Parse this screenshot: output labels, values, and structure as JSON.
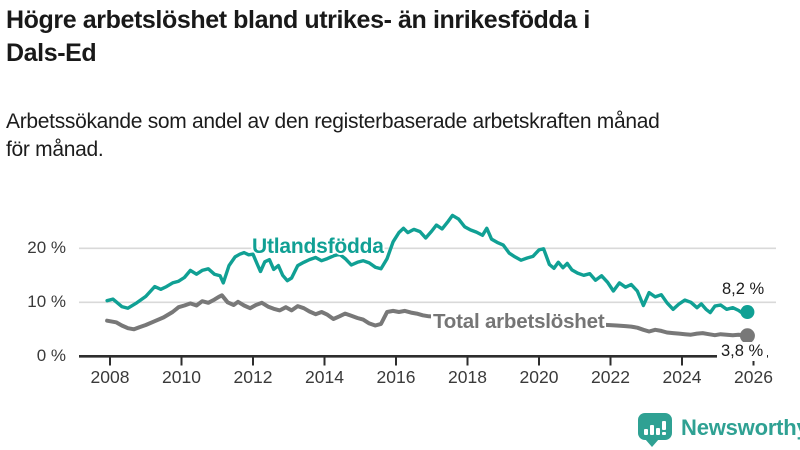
{
  "header": {
    "title": "Högre arbetslöshet bland utrikes- än inrikesfödda i\nDals-Ed",
    "subtitle": "Arbetssökande som andel av den registerbaserade arbetskraften månad\nför månad."
  },
  "footer": {
    "brand": "Newsworthy",
    "brand_color": "#2FA193",
    "logo_icon": "bar-chart-speech-bubble-icon"
  },
  "chart_data": {
    "type": "line",
    "title": "Högre arbetslöshet bland utrikes- än inrikesfödda i Dals-Ed",
    "subtitle": "Arbetssökande som andel av den registerbaserade arbetskraften månad för månad.",
    "unit": "%",
    "grid": "horizontal",
    "x_axis": {
      "ticks": [
        2008,
        2010,
        2012,
        2014,
        2016,
        2018,
        2020,
        2022,
        2024,
        2026
      ],
      "range": [
        2007.3,
        2026.4
      ]
    },
    "y_axis": {
      "ticks": [
        {
          "value": 0,
          "label": "0 %"
        },
        {
          "value": 10,
          "label": "10 %"
        },
        {
          "value": 20,
          "label": "20 %"
        }
      ],
      "range": [
        0,
        27
      ]
    },
    "series": [
      {
        "name": "Utlandsfödda",
        "color": "#10A094",
        "end_label": "8,2 %",
        "end_value": 8.2,
        "points": [
          [
            2007.92,
            10.3
          ],
          [
            2008.08,
            10.6
          ],
          [
            2008.33,
            9.2
          ],
          [
            2008.5,
            8.9
          ],
          [
            2008.75,
            9.9
          ],
          [
            2009.0,
            11.1
          ],
          [
            2009.25,
            12.9
          ],
          [
            2009.42,
            12.4
          ],
          [
            2009.58,
            12.9
          ],
          [
            2009.75,
            13.6
          ],
          [
            2009.92,
            13.9
          ],
          [
            2010.08,
            14.6
          ],
          [
            2010.25,
            15.9
          ],
          [
            2010.42,
            15.2
          ],
          [
            2010.58,
            15.9
          ],
          [
            2010.75,
            16.2
          ],
          [
            2010.92,
            15.2
          ],
          [
            2011.08,
            14.9
          ],
          [
            2011.17,
            13.6
          ],
          [
            2011.33,
            16.8
          ],
          [
            2011.5,
            18.4
          ],
          [
            2011.63,
            18.9
          ],
          [
            2011.75,
            19.2
          ],
          [
            2011.88,
            18.8
          ],
          [
            2012.0,
            18.9
          ],
          [
            2012.13,
            16.9
          ],
          [
            2012.21,
            15.7
          ],
          [
            2012.33,
            17.5
          ],
          [
            2012.46,
            17.9
          ],
          [
            2012.58,
            16.1
          ],
          [
            2012.71,
            16.8
          ],
          [
            2012.83,
            15.0
          ],
          [
            2012.96,
            14.0
          ],
          [
            2013.08,
            14.5
          ],
          [
            2013.25,
            16.8
          ],
          [
            2013.42,
            17.4
          ],
          [
            2013.58,
            17.9
          ],
          [
            2013.75,
            18.3
          ],
          [
            2013.92,
            17.7
          ],
          [
            2014.08,
            18.1
          ],
          [
            2014.25,
            18.6
          ],
          [
            2014.42,
            18.9
          ],
          [
            2014.58,
            18.1
          ],
          [
            2014.75,
            16.9
          ],
          [
            2014.92,
            17.4
          ],
          [
            2015.08,
            17.7
          ],
          [
            2015.25,
            17.3
          ],
          [
            2015.42,
            16.5
          ],
          [
            2015.58,
            16.2
          ],
          [
            2015.75,
            18.1
          ],
          [
            2015.92,
            21.2
          ],
          [
            2016.08,
            22.9
          ],
          [
            2016.21,
            23.7
          ],
          [
            2016.33,
            22.9
          ],
          [
            2016.5,
            23.5
          ],
          [
            2016.67,
            23.1
          ],
          [
            2016.83,
            21.9
          ],
          [
            2017.0,
            23.2
          ],
          [
            2017.13,
            24.3
          ],
          [
            2017.29,
            23.6
          ],
          [
            2017.46,
            25.0
          ],
          [
            2017.58,
            26.1
          ],
          [
            2017.75,
            25.4
          ],
          [
            2017.92,
            24.0
          ],
          [
            2018.08,
            23.4
          ],
          [
            2018.25,
            23.0
          ],
          [
            2018.42,
            22.4
          ],
          [
            2018.54,
            23.7
          ],
          [
            2018.67,
            21.7
          ],
          [
            2018.83,
            21.1
          ],
          [
            2019.0,
            20.6
          ],
          [
            2019.17,
            19.1
          ],
          [
            2019.33,
            18.4
          ],
          [
            2019.5,
            17.8
          ],
          [
            2019.67,
            18.2
          ],
          [
            2019.83,
            18.5
          ],
          [
            2020.0,
            19.7
          ],
          [
            2020.13,
            19.9
          ],
          [
            2020.29,
            17.0
          ],
          [
            2020.42,
            16.3
          ],
          [
            2020.54,
            17.4
          ],
          [
            2020.67,
            16.4
          ],
          [
            2020.79,
            17.2
          ],
          [
            2020.92,
            16.0
          ],
          [
            2021.08,
            15.4
          ],
          [
            2021.25,
            15.0
          ],
          [
            2021.42,
            15.3
          ],
          [
            2021.58,
            14.1
          ],
          [
            2021.75,
            14.9
          ],
          [
            2021.92,
            13.7
          ],
          [
            2022.08,
            12.1
          ],
          [
            2022.25,
            13.6
          ],
          [
            2022.42,
            12.8
          ],
          [
            2022.58,
            13.3
          ],
          [
            2022.75,
            12.1
          ],
          [
            2022.92,
            9.4
          ],
          [
            2023.08,
            11.8
          ],
          [
            2023.25,
            11.0
          ],
          [
            2023.42,
            11.4
          ],
          [
            2023.58,
            9.9
          ],
          [
            2023.75,
            8.7
          ],
          [
            2023.92,
            9.7
          ],
          [
            2024.08,
            10.4
          ],
          [
            2024.25,
            10.0
          ],
          [
            2024.42,
            9.0
          ],
          [
            2024.54,
            9.7
          ],
          [
            2024.67,
            8.7
          ],
          [
            2024.79,
            8.1
          ],
          [
            2024.92,
            9.3
          ],
          [
            2025.08,
            9.5
          ],
          [
            2025.25,
            8.7
          ],
          [
            2025.42,
            9.0
          ],
          [
            2025.58,
            8.5
          ],
          [
            2025.71,
            7.9
          ],
          [
            2025.83,
            8.2
          ]
        ]
      },
      {
        "name": "Total arbetslöshet",
        "color": "#787878",
        "end_label": "3,8 %",
        "end_value": 3.8,
        "points": [
          [
            2007.92,
            6.6
          ],
          [
            2008.17,
            6.3
          ],
          [
            2008.33,
            5.7
          ],
          [
            2008.5,
            5.2
          ],
          [
            2008.67,
            5.0
          ],
          [
            2008.83,
            5.4
          ],
          [
            2009.0,
            5.8
          ],
          [
            2009.25,
            6.5
          ],
          [
            2009.5,
            7.2
          ],
          [
            2009.75,
            8.2
          ],
          [
            2009.92,
            9.1
          ],
          [
            2010.08,
            9.4
          ],
          [
            2010.25,
            9.8
          ],
          [
            2010.42,
            9.4
          ],
          [
            2010.58,
            10.2
          ],
          [
            2010.75,
            9.9
          ],
          [
            2010.92,
            10.5
          ],
          [
            2011.04,
            11.0
          ],
          [
            2011.13,
            11.3
          ],
          [
            2011.29,
            10.0
          ],
          [
            2011.46,
            9.5
          ],
          [
            2011.58,
            10.1
          ],
          [
            2011.75,
            9.4
          ],
          [
            2011.92,
            8.9
          ],
          [
            2012.08,
            9.5
          ],
          [
            2012.25,
            9.9
          ],
          [
            2012.42,
            9.2
          ],
          [
            2012.58,
            8.8
          ],
          [
            2012.75,
            8.5
          ],
          [
            2012.92,
            9.1
          ],
          [
            2013.08,
            8.5
          ],
          [
            2013.25,
            9.3
          ],
          [
            2013.42,
            8.9
          ],
          [
            2013.58,
            8.3
          ],
          [
            2013.75,
            7.8
          ],
          [
            2013.92,
            8.2
          ],
          [
            2014.08,
            7.7
          ],
          [
            2014.25,
            6.9
          ],
          [
            2014.42,
            7.4
          ],
          [
            2014.58,
            7.9
          ],
          [
            2014.75,
            7.5
          ],
          [
            2014.92,
            7.1
          ],
          [
            2015.08,
            6.8
          ],
          [
            2015.25,
            6.1
          ],
          [
            2015.42,
            5.7
          ],
          [
            2015.58,
            6.0
          ],
          [
            2015.75,
            8.2
          ],
          [
            2015.92,
            8.4
          ],
          [
            2016.08,
            8.2
          ],
          [
            2016.25,
            8.4
          ],
          [
            2016.42,
            8.1
          ],
          [
            2016.58,
            7.9
          ],
          [
            2016.75,
            7.6
          ],
          [
            2016.92,
            7.4
          ],
          [
            2017.17,
            7.3
          ],
          [
            2017.42,
            7.2
          ],
          [
            2017.67,
            7.1
          ],
          [
            2017.92,
            7.0
          ],
          [
            2018.17,
            6.8
          ],
          [
            2018.42,
            6.7
          ],
          [
            2018.67,
            6.6
          ],
          [
            2018.92,
            6.5
          ],
          [
            2019.17,
            6.4
          ],
          [
            2019.42,
            6.3
          ],
          [
            2019.67,
            6.3
          ],
          [
            2019.92,
            6.4
          ],
          [
            2020.17,
            6.6
          ],
          [
            2020.42,
            6.5
          ],
          [
            2020.67,
            6.4
          ],
          [
            2020.92,
            6.2
          ],
          [
            2021.17,
            6.1
          ],
          [
            2021.42,
            6.0
          ],
          [
            2021.67,
            5.9
          ],
          [
            2021.92,
            5.8
          ],
          [
            2022.17,
            5.7
          ],
          [
            2022.42,
            5.6
          ],
          [
            2022.58,
            5.5
          ],
          [
            2022.75,
            5.3
          ],
          [
            2022.92,
            4.9
          ],
          [
            2023.08,
            4.6
          ],
          [
            2023.25,
            4.9
          ],
          [
            2023.42,
            4.7
          ],
          [
            2023.58,
            4.4
          ],
          [
            2023.75,
            4.3
          ],
          [
            2023.92,
            4.2
          ],
          [
            2024.08,
            4.1
          ],
          [
            2024.25,
            4.0
          ],
          [
            2024.42,
            4.2
          ],
          [
            2024.58,
            4.3
          ],
          [
            2024.75,
            4.1
          ],
          [
            2024.92,
            3.9
          ],
          [
            2025.08,
            4.1
          ],
          [
            2025.25,
            4.0
          ],
          [
            2025.42,
            3.9
          ],
          [
            2025.58,
            4.0
          ],
          [
            2025.71,
            3.9
          ],
          [
            2025.83,
            3.8
          ]
        ]
      }
    ]
  }
}
